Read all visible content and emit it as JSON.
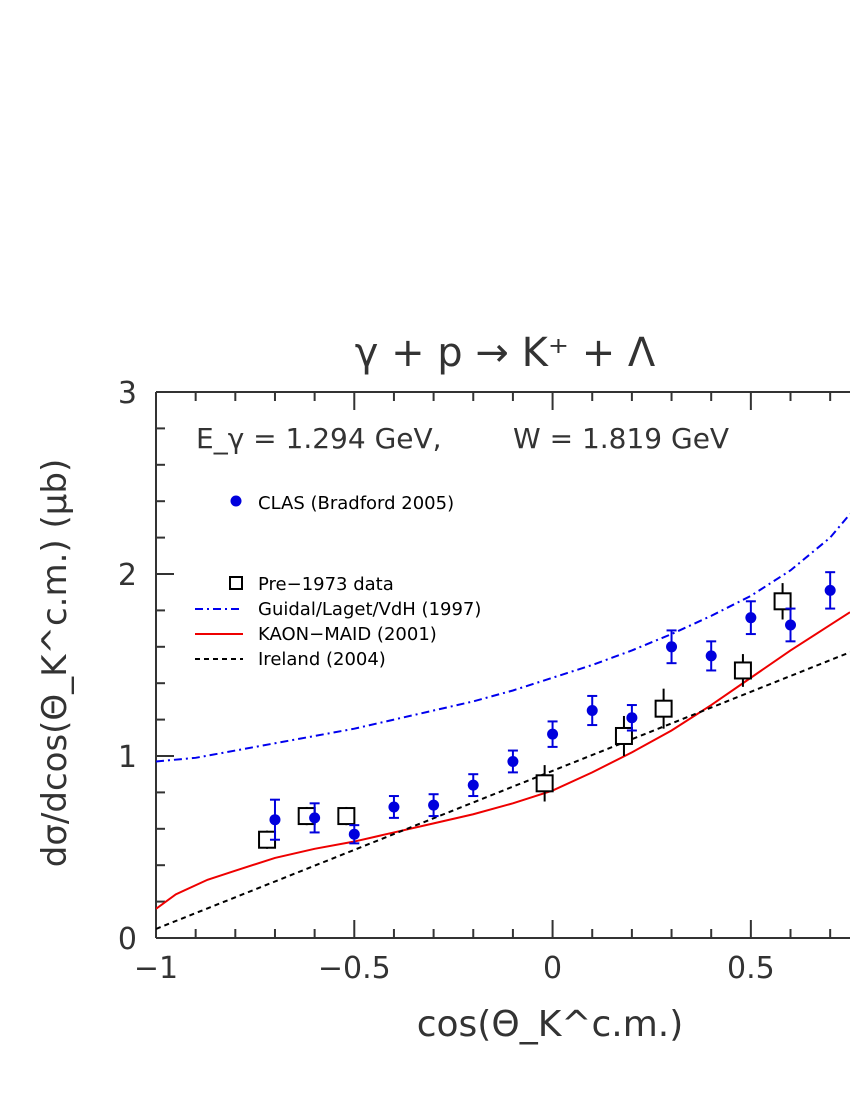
{
  "chart_data": {
    "type": "scatter",
    "title": "γ + p → K⁺ + Λ",
    "xlabel": "cos(Θ_K^c.m.)",
    "ylabel": "dσ/dcos(Θ_K^c.m.) (μb)",
    "xlim": [
      -1,
      0.75
    ],
    "ylim": [
      0,
      3
    ],
    "x_ticks": [
      "-1",
      "-0.5",
      "0",
      "0.5"
    ],
    "y_ticks": [
      "0",
      "1",
      "2",
      "3"
    ],
    "annotation": {
      "energy": "E_γ = 1.294 GeV,",
      "w": "W = 1.819 GeV"
    },
    "legend": {
      "placement": "top-left",
      "entries": [
        "CLAS (Bradford 2005)",
        "Pre−1973 data",
        "Guidal/Laget/VdH (1997)",
        "KAON−MAID (2001)",
        "Ireland (2004)"
      ]
    },
    "colors": {
      "clas": "#0000dd",
      "pre1973": "#000000",
      "guidal": "#0000ee",
      "kaon_maid": "#ee0000",
      "ireland": "#000000",
      "axis": "#333333"
    },
    "series": [
      {
        "name": "CLAS (Bradford 2005)",
        "kind": "points",
        "x": [
          -0.7,
          -0.6,
          -0.5,
          -0.4,
          -0.3,
          -0.2,
          -0.1,
          0.0,
          0.1,
          0.2,
          0.3,
          0.4,
          0.5,
          0.6,
          0.7
        ],
        "y": [
          0.65,
          0.66,
          0.57,
          0.72,
          0.73,
          0.84,
          0.97,
          1.12,
          1.25,
          1.21,
          1.6,
          1.55,
          1.76,
          1.72,
          1.91
        ],
        "err": [
          0.11,
          0.08,
          0.05,
          0.06,
          0.06,
          0.06,
          0.06,
          0.07,
          0.08,
          0.07,
          0.09,
          0.08,
          0.09,
          0.09,
          0.1
        ]
      },
      {
        "name": "Pre−1973 data",
        "kind": "points",
        "x": [
          -0.72,
          -0.62,
          -0.52,
          -0.02,
          0.18,
          0.28,
          0.48,
          0.58
        ],
        "y": [
          0.54,
          0.67,
          0.67,
          0.85,
          1.11,
          1.26,
          1.47,
          1.85
        ],
        "err": [
          0.05,
          0.05,
          0.05,
          0.1,
          0.11,
          0.11,
          0.09,
          0.1
        ]
      },
      {
        "name": "Guidal/Laget/VdH (1997)",
        "kind": "line",
        "x": [
          -1,
          -0.9,
          -0.8,
          -0.7,
          -0.6,
          -0.5,
          -0.4,
          -0.3,
          -0.2,
          -0.1,
          0.0,
          0.1,
          0.2,
          0.3,
          0.4,
          0.5,
          0.6,
          0.7,
          0.75
        ],
        "y": [
          0.97,
          0.99,
          1.03,
          1.07,
          1.11,
          1.15,
          1.2,
          1.25,
          1.3,
          1.36,
          1.43,
          1.5,
          1.58,
          1.67,
          1.77,
          1.88,
          2.02,
          2.2,
          2.33
        ]
      },
      {
        "name": "KAON−MAID (2001)",
        "kind": "line",
        "x": [
          -1,
          -0.95,
          -0.87,
          -0.8,
          -0.7,
          -0.6,
          -0.5,
          -0.4,
          -0.3,
          -0.2,
          -0.1,
          0.0,
          0.1,
          0.2,
          0.3,
          0.4,
          0.5,
          0.6,
          0.7,
          0.75
        ],
        "y": [
          0.16,
          0.24,
          0.32,
          0.37,
          0.44,
          0.49,
          0.53,
          0.58,
          0.63,
          0.68,
          0.74,
          0.81,
          0.91,
          1.02,
          1.14,
          1.28,
          1.43,
          1.58,
          1.72,
          1.79
        ]
      },
      {
        "name": "Ireland (2004)",
        "kind": "line",
        "x": [
          -1,
          0.75
        ],
        "y": [
          0.05,
          1.57
        ]
      }
    ]
  }
}
